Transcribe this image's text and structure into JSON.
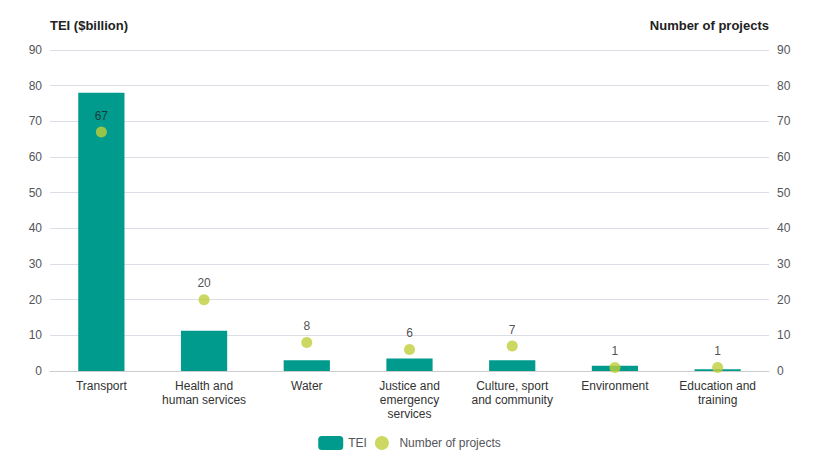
{
  "chart_data": {
    "type": "bar",
    "ylabel": "TEI ($billion)",
    "y2label": "Number of projects",
    "categories": [
      "Transport",
      "Health and\nhuman services",
      "Water",
      "Justice and\nemergency\nservices",
      "Culture, sport\nand community",
      "Environment",
      "Education and\ntraining"
    ],
    "series": [
      {
        "name": "TEI",
        "type": "bar",
        "color": "#009B8D",
        "values": [
          78.0,
          11.3,
          3.0,
          3.5,
          3.0,
          1.5,
          0.5
        ]
      },
      {
        "name": "Number of projects",
        "type": "scatter",
        "axis": "y2",
        "color": "#BFCE3A",
        "marker": "circle",
        "data_labels": true,
        "values": [
          67,
          20,
          8,
          6,
          7,
          1,
          1
        ]
      }
    ],
    "ylim": [
      0,
      90
    ],
    "yticks": [
      0,
      10,
      20,
      30,
      40,
      50,
      60,
      70,
      80,
      90
    ],
    "y2lim": [
      0,
      90
    ],
    "y2ticks": [
      0,
      10,
      20,
      30,
      40,
      50,
      60,
      70,
      80,
      90
    ],
    "grid": true,
    "legend": "bottom"
  }
}
